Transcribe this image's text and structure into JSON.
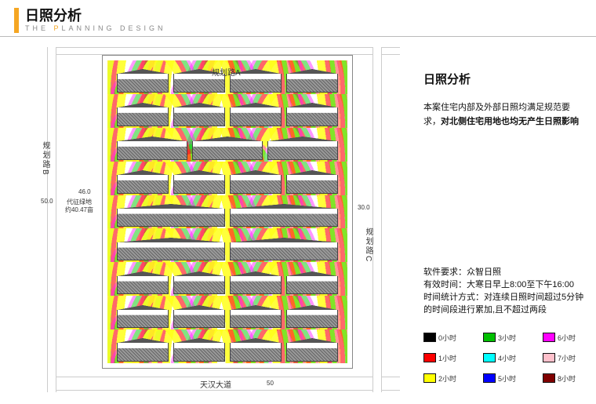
{
  "header": {
    "title_cn": "日照分析",
    "subtitle_prefix": "THE ",
    "subtitle_p": "P",
    "subtitle_rest": "LANNING DESIGN"
  },
  "right": {
    "title": "日照分析",
    "para_plain": "本案住宅内部及外部日照均满足规范要求，",
    "para_em": "对北侧住宅用地也均无产生日照影响",
    "spec_software_k": "软件要求：",
    "spec_software_v": "众智日照",
    "spec_time_k": "有效时间：",
    "spec_time_v": "大寒日早上8:00至下午16:00",
    "spec_method_k": "时间统计方式：",
    "spec_method_v": "对连续日照时间超过5分钟的时间段进行累加,且不超过两段"
  },
  "legend": [
    {
      "label": "0小时",
      "color": "#000000"
    },
    {
      "label": "3小时",
      "color": "#00c000"
    },
    {
      "label": "6小时",
      "color": "#ff00ff"
    },
    {
      "label": "1小时",
      "color": "#ff0000"
    },
    {
      "label": "4小时",
      "color": "#00ffff"
    },
    {
      "label": "7小时",
      "color": "#ffc0cb"
    },
    {
      "label": "2小时",
      "color": "#ffff00"
    },
    {
      "label": "5小时",
      "color": "#0000ff"
    },
    {
      "label": "8小时",
      "color": "#800000"
    }
  ],
  "roads": {
    "north": "规划路A",
    "west": "规划路B",
    "east": "规划路C",
    "south": "天汉大道"
  },
  "dims": {
    "west_w": "50.0",
    "gap_w": "46.0",
    "east_w": "30.0",
    "south_h": "50"
  },
  "green_label_1": "代征绿地",
  "green_label_2": "约40.47亩",
  "building_rows": 9,
  "buildings_per_row": 4,
  "heat_palette": {
    "band0": "#ffff00",
    "band1": "#ff0000",
    "band2": "#00c800",
    "band3": "#ff00ff"
  }
}
